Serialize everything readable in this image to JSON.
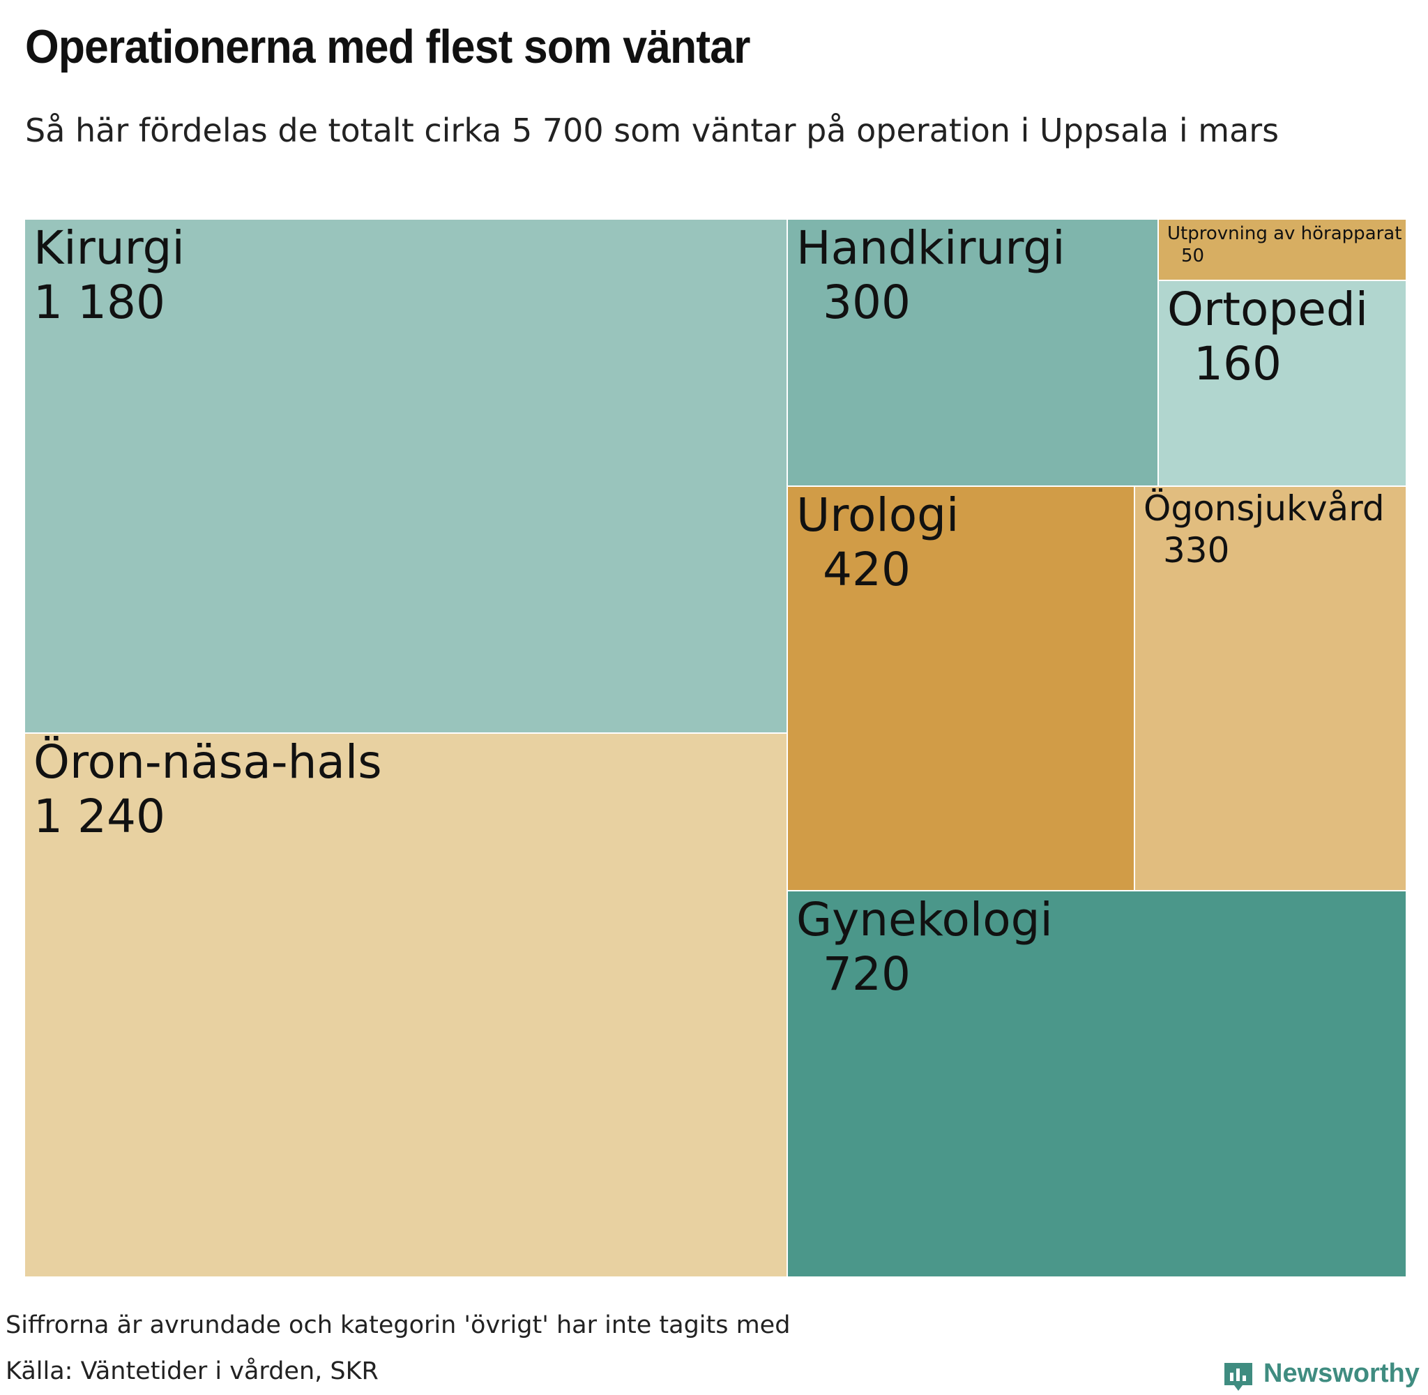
{
  "title": "Operationerna med flest som väntar",
  "subtitle": "Så här fördelas de totalt cirka 5 700 som väntar på operation i Uppsala i mars",
  "chart_data": {
    "type": "treemap",
    "total_approx": 5700,
    "items": [
      {
        "label": "Kirurgi",
        "value": 1180,
        "display": "1 180",
        "color": "#99c4bc"
      },
      {
        "label": "Öron-näsa-hals",
        "value": 1240,
        "display": "1 240",
        "color": "#e8d1a1"
      },
      {
        "label": "Handkirurgi",
        "value": 300,
        "display": "300",
        "color": "#7fb5ac"
      },
      {
        "label": "Utprovning av hörapparat",
        "value": 50,
        "display": "50",
        "color": "#d7ae62"
      },
      {
        "label": "Ortopedi",
        "value": 160,
        "display": "160",
        "color": "#b1d6cf"
      },
      {
        "label": "Urologi",
        "value": 420,
        "display": "420",
        "color": "#d19c47"
      },
      {
        "label": "Ögonsjukvård",
        "value": 330,
        "display": "330",
        "color": "#e1bd7f"
      },
      {
        "label": "Gynekologi",
        "value": 720,
        "display": "720",
        "color": "#4b978a"
      }
    ]
  },
  "footer": {
    "note": "Siffrorna är avrundade och kategorin 'övrigt' har inte tagits med",
    "source": "Källa: Väntetider i vården, SKR"
  },
  "logo": {
    "name": "Newsworthy",
    "icon": "bar-chart-speech-bubble-icon",
    "color": "#3f8c80"
  }
}
